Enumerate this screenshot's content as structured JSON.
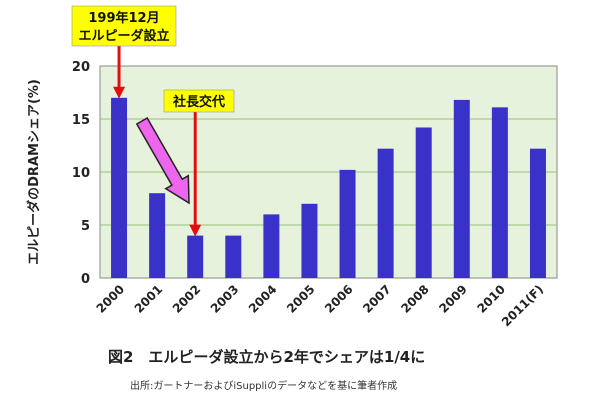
{
  "chart_data": {
    "type": "bar",
    "categories": [
      "2000",
      "2001",
      "2002",
      "2003",
      "2004",
      "2005",
      "2006",
      "2007",
      "2008",
      "2009",
      "2010",
      "2011(F)"
    ],
    "values": [
      17,
      8,
      4,
      4,
      6,
      7,
      10.2,
      12.2,
      14.2,
      16.8,
      16.1,
      12.2
    ],
    "title": "",
    "xlabel": "",
    "ylabel": "エルピーダのDRAMシェア(%)",
    "ylim": [
      0,
      20
    ],
    "yticks": [
      "0",
      "5",
      "10",
      "15",
      "20"
    ],
    "grid": true,
    "bar_color": "#3a32c8",
    "plot_background": "#e6f2dc",
    "gridline_color": "#9bc07a",
    "annotations": [
      {
        "lines": [
          "199年12月",
          "エルピーダ設立"
        ],
        "target_category": "2000",
        "box_color": "#ffff00",
        "arrow_color": "#e01010"
      },
      {
        "lines": [
          "社長交代"
        ],
        "target_category": "2002",
        "box_color": "#ffff00",
        "arrow_color": "#e01010"
      }
    ],
    "pink_arrow_color": "#ee66ee"
  },
  "caption": "図2　エルピーダ設立から2年でシェアは1/4に",
  "source": "出所:ガートナーおよびiSuppliのデータなどを基に筆者作成"
}
